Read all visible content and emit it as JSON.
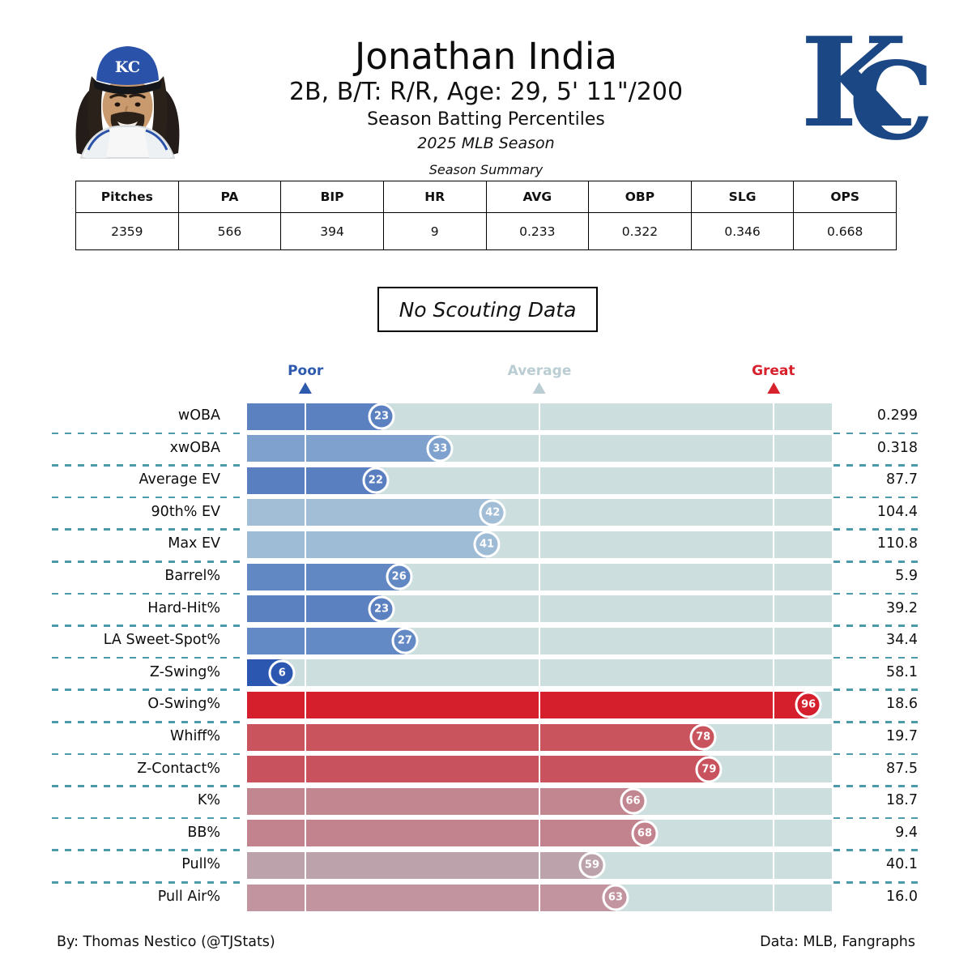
{
  "header": {
    "title": "Jonathan India",
    "subtitle": "2B, B/T: R/R, Age: 29, 5' 11\"/200",
    "chart_label": "Season Batting Percentiles",
    "season": "2025 MLB Season",
    "cap_text": "KC",
    "logo": {
      "k": "K",
      "c": "C",
      "color": "#1b4784"
    }
  },
  "summary_table": {
    "title": "Season Summary",
    "columns": [
      "Pitches",
      "PA",
      "BIP",
      "HR",
      "AVG",
      "OBP",
      "SLG",
      "OPS"
    ],
    "values": [
      "2359",
      "566",
      "394",
      "9",
      "0.233",
      "0.322",
      "0.346",
      "0.668"
    ]
  },
  "scouting_note": "No Scouting Data",
  "legend": {
    "poor": {
      "label": "Poor",
      "color": "#2e5aae",
      "percentile": 10
    },
    "average": {
      "label": "Average",
      "color": "#b9cdd3",
      "percentile": 50
    },
    "great": {
      "label": "Great",
      "color": "#d7212c",
      "percentile": 90
    }
  },
  "chart_data": {
    "type": "bar",
    "orientation": "horizontal",
    "xlim": [
      0,
      100
    ],
    "reference_lines": [
      10,
      50,
      90
    ],
    "track_color": "#cddede",
    "separator_color": "#4d9aab",
    "rows": [
      {
        "label": "wOBA",
        "percentile": 23,
        "value": "0.299",
        "color": "#5b81c1"
      },
      {
        "label": "xwOBA",
        "percentile": 33,
        "value": "0.318",
        "color": "#7ea2cd"
      },
      {
        "label": "Average EV",
        "percentile": 22,
        "value": "87.7",
        "color": "#5a7fc0"
      },
      {
        "label": "90th% EV",
        "percentile": 42,
        "value": "104.4",
        "color": "#a2bed7"
      },
      {
        "label": "Max EV",
        "percentile": 41,
        "value": "110.8",
        "color": "#9fbcd6"
      },
      {
        "label": "Barrel%",
        "percentile": 26,
        "value": "5.9",
        "color": "#6288c4"
      },
      {
        "label": "Hard-Hit%",
        "percentile": 23,
        "value": "39.2",
        "color": "#5b81c1"
      },
      {
        "label": "LA Sweet-Spot%",
        "percentile": 27,
        "value": "34.4",
        "color": "#648ac6"
      },
      {
        "label": "Z-Swing%",
        "percentile": 6,
        "value": "58.1",
        "color": "#2b57b1"
      },
      {
        "label": "O-Swing%",
        "percentile": 96,
        "value": "18.6",
        "color": "#d61f2c"
      },
      {
        "label": "Whiff%",
        "percentile": 78,
        "value": "19.7",
        "color": "#c9545e"
      },
      {
        "label": "Z-Contact%",
        "percentile": 79,
        "value": "87.5",
        "color": "#c8525e"
      },
      {
        "label": "K%",
        "percentile": 66,
        "value": "18.7",
        "color": "#c28690"
      },
      {
        "label": "BB%",
        "percentile": 68,
        "value": "9.4",
        "color": "#c3838e"
      },
      {
        "label": "Pull%",
        "percentile": 59,
        "value": "40.1",
        "color": "#bca3ab"
      },
      {
        "label": "Pull Air%",
        "percentile": 63,
        "value": "16.0",
        "color": "#c2949f"
      }
    ]
  },
  "footer": {
    "credit": "By: Thomas Nestico (@TJStats)",
    "source": "Data: MLB, Fangraphs"
  }
}
